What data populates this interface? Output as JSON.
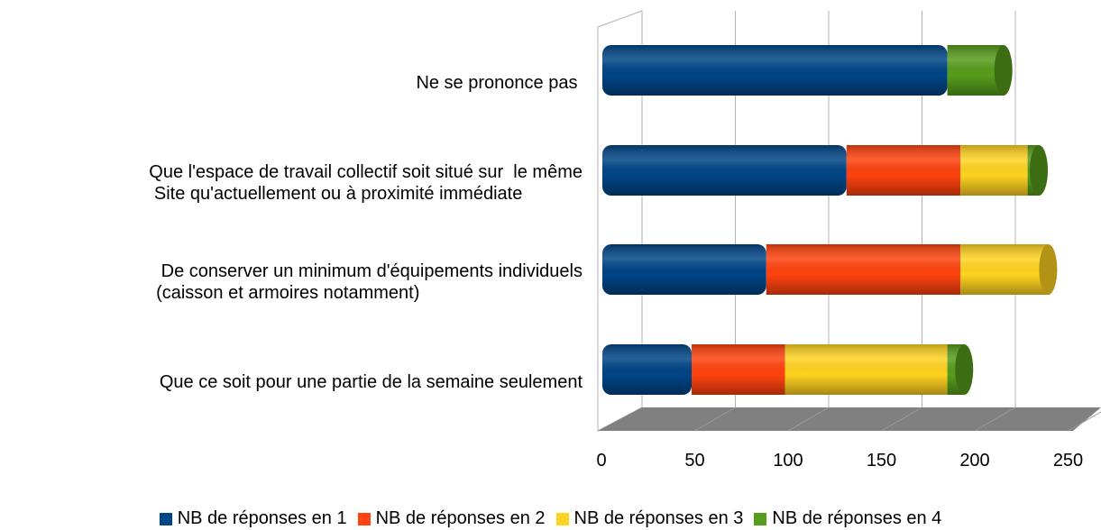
{
  "chart_data": {
    "type": "bar",
    "orientation": "horizontal",
    "stacked": true,
    "categories": [
      "Ne se prononce pas ",
      "Que l'espace de travail collectif soit situé sur  le même\n Site qu'actuellement ou à proximité immédiate",
      " De conserver un minimum d'équipements individuels\n(caisson et armoires notamment)",
      "Que ce soit pour une partie de la semaine seulement"
    ],
    "series": [
      {
        "name": "NB de réponses en 1",
        "color": "#004586",
        "values": [
          180,
          126,
          83,
          43
        ]
      },
      {
        "name": "NB de réponses en 2",
        "color": "#ff420e",
        "values": [
          0,
          61,
          104,
          50
        ]
      },
      {
        "name": "NB de réponses en 3",
        "color": "#ffd320",
        "values": [
          0,
          36,
          47,
          87
        ]
      },
      {
        "name": "NB de réponses en 4",
        "color": "#579d1c",
        "values": [
          30,
          6,
          0,
          9
        ]
      }
    ],
    "xlim": [
      0,
      250
    ],
    "xticks": [
      0,
      50,
      100,
      150,
      200,
      250
    ],
    "grid": true
  }
}
